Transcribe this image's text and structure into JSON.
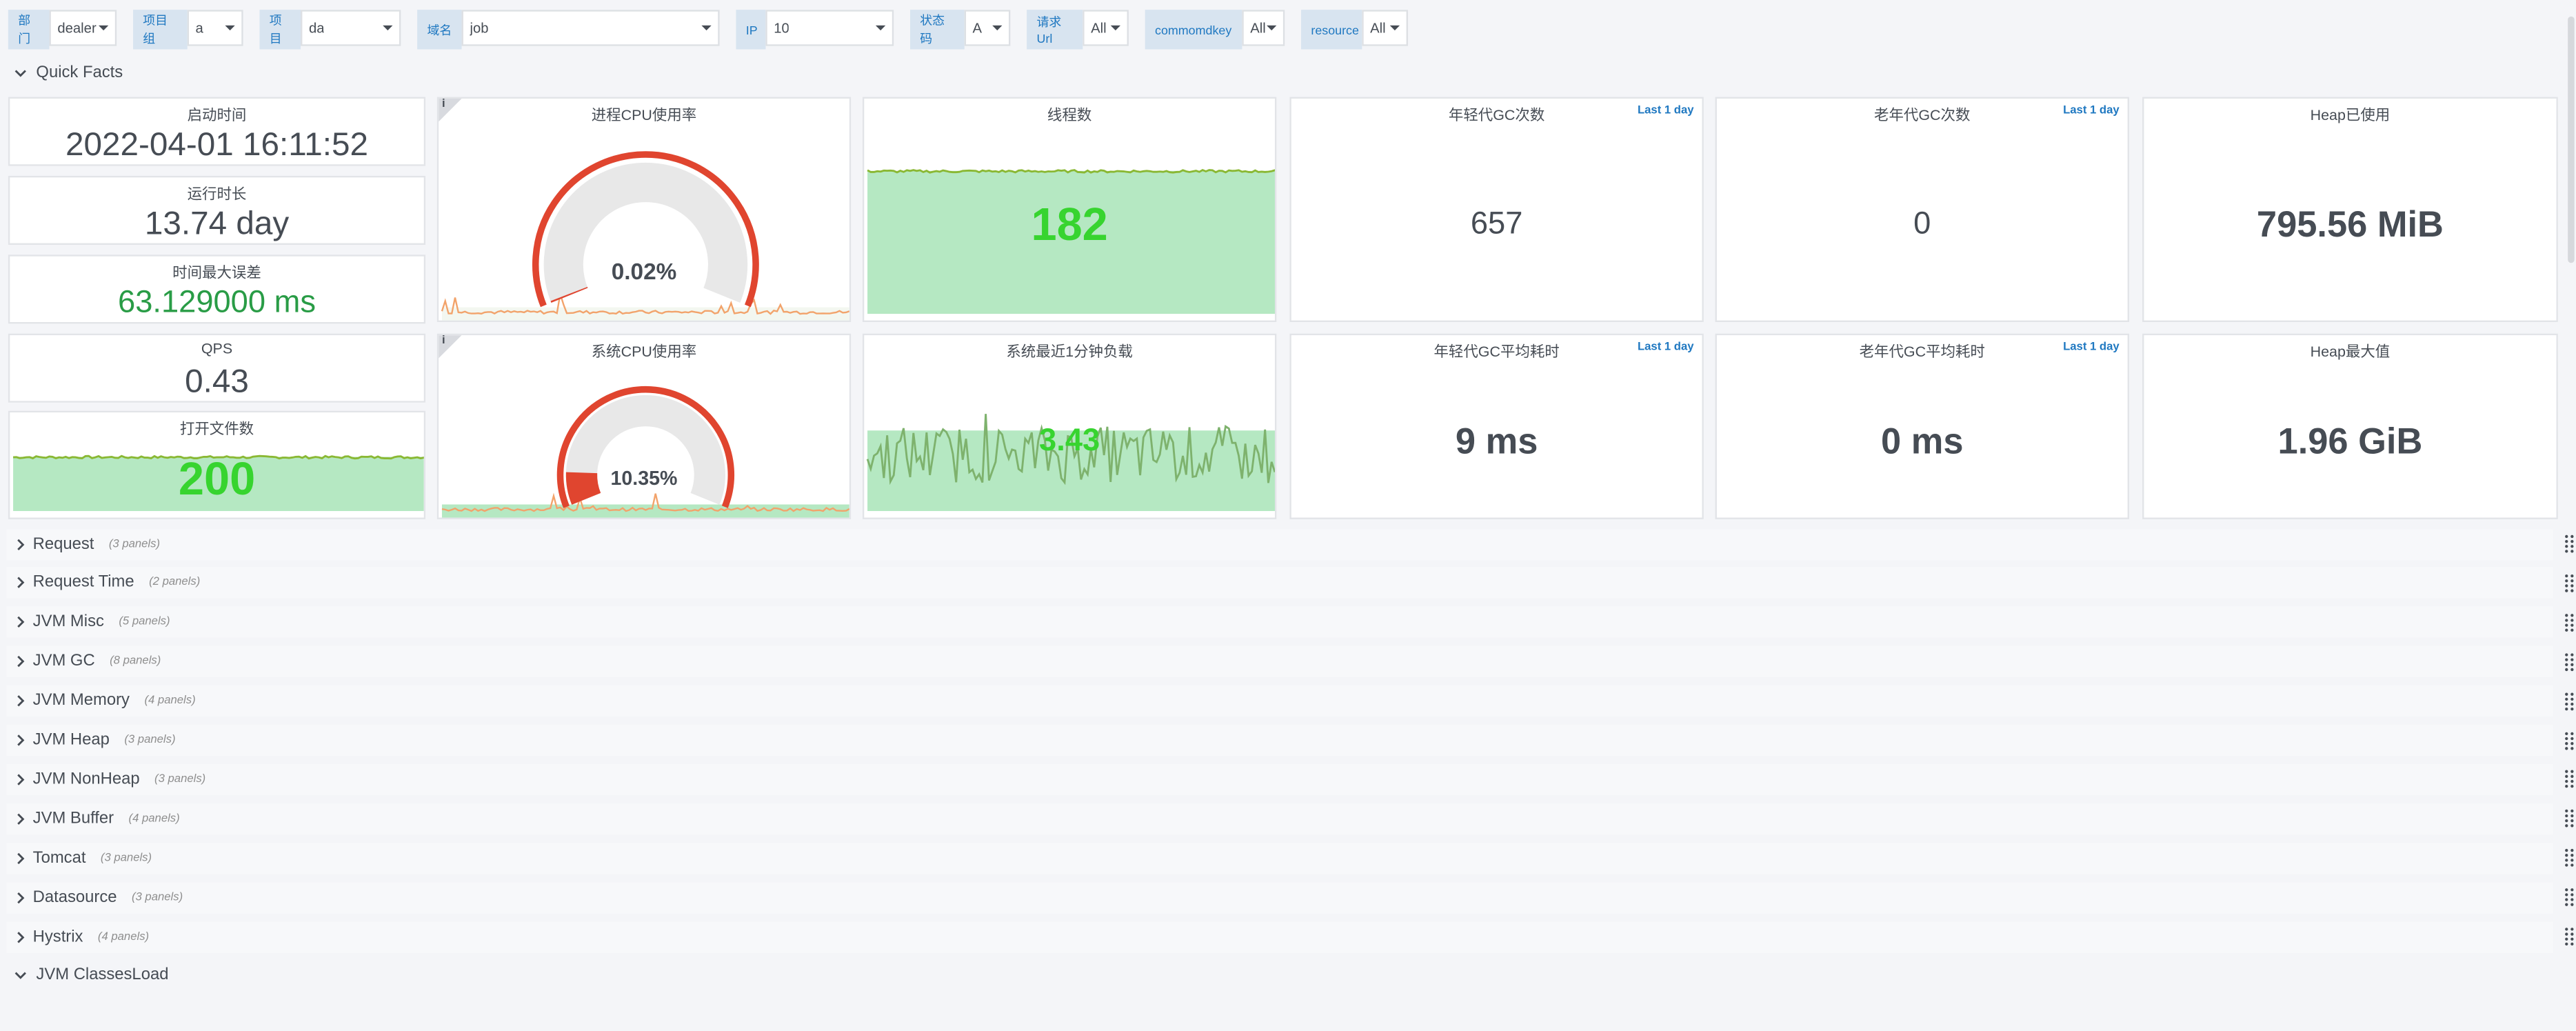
{
  "variables": [
    {
      "label": "部门",
      "value": "dealer"
    },
    {
      "label": "项目组",
      "value": "a"
    },
    {
      "label": "项目",
      "value": "da"
    },
    {
      "label": "域名",
      "value": "job"
    },
    {
      "label": "IP",
      "value": "10"
    },
    {
      "label": "状态码",
      "value": "A"
    },
    {
      "label": "请求Url",
      "value": "All"
    },
    {
      "label": "commomdkey",
      "value": "All"
    },
    {
      "label": "resource",
      "value": "All"
    }
  ],
  "quick_facts": {
    "title": "Quick Facts",
    "panels": [
      {
        "title": "启动时间",
        "value": "2022-04-01 16:11:52",
        "kind": "stat",
        "color": "#464c54"
      },
      {
        "title": "运行时长",
        "value": "13.74 day",
        "kind": "stat",
        "color": "#464c54"
      },
      {
        "title": "时间最大误差",
        "value": "63.129000 ms",
        "kind": "stat",
        "color": "#299c46"
      },
      {
        "title": "QPS",
        "value": "0.43",
        "kind": "stat",
        "color": "#464c54"
      },
      {
        "title": "打开文件数",
        "value": "200",
        "kind": "area",
        "color": "#37d42f"
      },
      {
        "title": "进程CPU使用率",
        "value": "0.02%",
        "kind": "gauge",
        "color": "#464c54",
        "corner": "i"
      },
      {
        "title": "系统CPU使用率",
        "value": "10.35%",
        "kind": "gauge",
        "color": "#464c54",
        "corner": "i"
      },
      {
        "title": "线程数",
        "value": "182",
        "kind": "area",
        "color": "#37d42f"
      },
      {
        "title": "系统最近1分钟负载",
        "value": "3.43",
        "kind": "line",
        "color": "#37d42f"
      },
      {
        "title": "年轻代GC次数",
        "value": "657",
        "kind": "stat",
        "color": "#464c54",
        "badge": "Last 1 day"
      },
      {
        "title": "老年代GC次数",
        "value": "0",
        "kind": "stat",
        "color": "#464c54",
        "badge": "Last 1 day"
      },
      {
        "title": "Heap已使用",
        "value": "795.56 MiB",
        "kind": "stat",
        "color": "#464c54"
      },
      {
        "title": "年轻代GC平均耗时",
        "value": "9 ms",
        "kind": "stat",
        "color": "#464c54",
        "badge": "Last 1 day"
      },
      {
        "title": "老年代GC平均耗时",
        "value": "0 ms",
        "kind": "stat",
        "color": "#464c54",
        "badge": "Last 1 day"
      },
      {
        "title": "Heap最大值",
        "value": "1.96 GiB",
        "kind": "stat",
        "color": "#464c54"
      }
    ]
  },
  "rows": [
    {
      "title": "Request",
      "count": "(3 panels)"
    },
    {
      "title": "Request Time",
      "count": "(2 panels)"
    },
    {
      "title": "JVM Misc",
      "count": "(5 panels)"
    },
    {
      "title": "JVM GC",
      "count": "(8 panels)"
    },
    {
      "title": "JVM Memory",
      "count": "(4 panels)"
    },
    {
      "title": "JVM Heap",
      "count": "(3 panels)"
    },
    {
      "title": "JVM NonHeap",
      "count": "(3 panels)"
    },
    {
      "title": "JVM Buffer",
      "count": "(4 panels)"
    },
    {
      "title": "Tomcat",
      "count": "(3 panels)"
    },
    {
      "title": "Datasource",
      "count": "(3 panels)"
    },
    {
      "title": "Hystrix",
      "count": "(4 panels)"
    }
  ],
  "expanded_row": {
    "title": "JVM ClassesLoad"
  }
}
